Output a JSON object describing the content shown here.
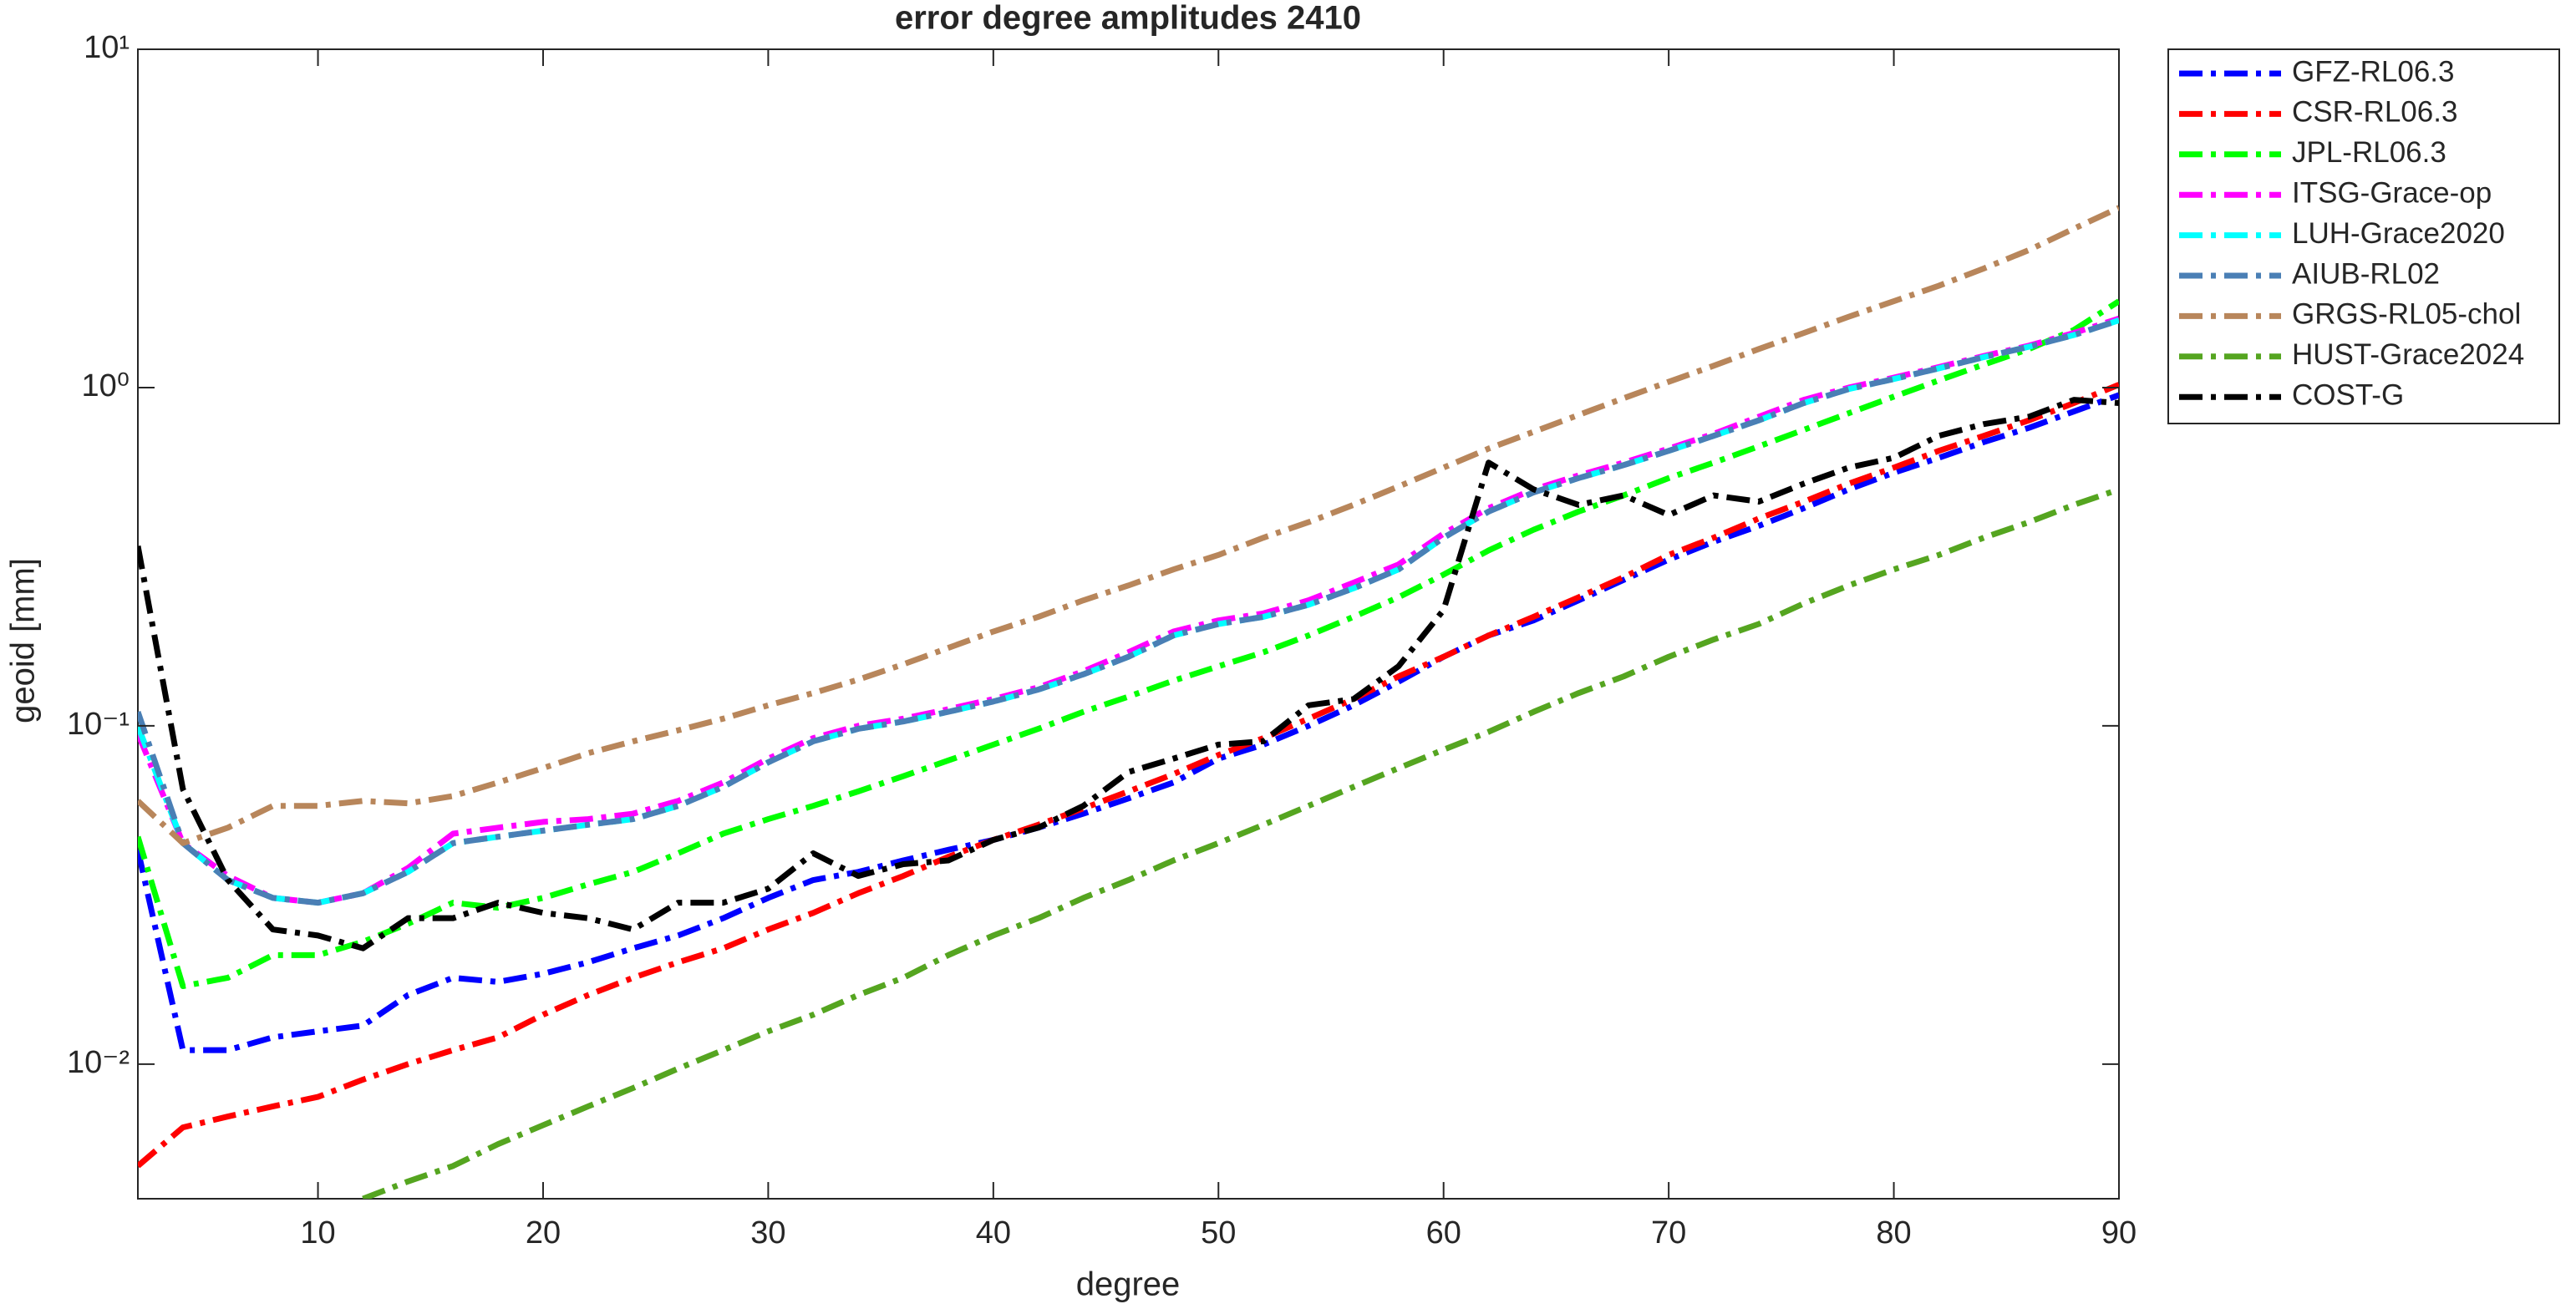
{
  "chart_data": {
    "type": "line",
    "title": "error degree amplitudes 2410",
    "x_label": "degree",
    "y_label": "geoid [mm]",
    "yscale": "log",
    "grid": false,
    "legend": "outside-right",
    "xlim": [
      2,
      90
    ],
    "xticks": [
      10,
      20,
      30,
      40,
      50,
      60,
      70,
      80,
      90
    ],
    "ylim": [
      0.004,
      10
    ],
    "yticks": [
      {
        "value": 0.01,
        "label": "10⁻²"
      },
      {
        "value": 0.1,
        "label": "10⁻¹"
      },
      {
        "value": 1,
        "label": "10⁰"
      },
      {
        "value": 10,
        "label": "10¹"
      }
    ],
    "x": [
      2,
      4,
      6,
      8,
      10,
      12,
      14,
      16,
      18,
      20,
      22,
      24,
      26,
      28,
      30,
      32,
      34,
      36,
      38,
      40,
      42,
      44,
      46,
      48,
      50,
      52,
      54,
      56,
      58,
      60,
      62,
      64,
      66,
      68,
      70,
      72,
      74,
      76,
      78,
      80,
      82,
      84,
      86,
      88,
      90
    ],
    "series": [
      {
        "name": "GFZ-RL06.3",
        "color": "#0000ff",
        "values": [
          0.043,
          0.011,
          0.011,
          0.012,
          0.0125,
          0.013,
          0.016,
          0.018,
          0.0175,
          0.0185,
          0.02,
          0.022,
          0.024,
          0.027,
          0.031,
          0.035,
          0.037,
          0.04,
          0.043,
          0.046,
          0.05,
          0.055,
          0.061,
          0.068,
          0.08,
          0.088,
          0.1,
          0.115,
          0.135,
          0.16,
          0.185,
          0.205,
          0.235,
          0.27,
          0.31,
          0.35,
          0.39,
          0.44,
          0.5,
          0.56,
          0.62,
          0.69,
          0.76,
          0.85,
          0.95
        ]
      },
      {
        "name": "CSR-RL06.3",
        "color": "#ff0000",
        "values": [
          0.005,
          0.0065,
          0.007,
          0.0075,
          0.008,
          0.009,
          0.01,
          0.011,
          0.012,
          0.014,
          0.016,
          0.018,
          0.02,
          0.022,
          0.025,
          0.028,
          0.032,
          0.036,
          0.041,
          0.046,
          0.051,
          0.057,
          0.064,
          0.072,
          0.082,
          0.092,
          0.105,
          0.12,
          0.14,
          0.16,
          0.185,
          0.21,
          0.24,
          0.275,
          0.32,
          0.36,
          0.41,
          0.46,
          0.52,
          0.58,
          0.65,
          0.72,
          0.8,
          0.9,
          1.02
        ]
      },
      {
        "name": "JPL-RL06.3",
        "color": "#00ff00",
        "values": [
          0.047,
          0.017,
          0.018,
          0.021,
          0.021,
          0.023,
          0.026,
          0.03,
          0.029,
          0.031,
          0.034,
          0.037,
          0.042,
          0.048,
          0.053,
          0.058,
          0.064,
          0.071,
          0.079,
          0.088,
          0.098,
          0.11,
          0.122,
          0.136,
          0.15,
          0.165,
          0.185,
          0.21,
          0.24,
          0.28,
          0.33,
          0.38,
          0.43,
          0.48,
          0.54,
          0.6,
          0.67,
          0.75,
          0.84,
          0.94,
          1.05,
          1.17,
          1.3,
          1.48,
          1.8
        ]
      },
      {
        "name": "ITSG-Grace-op",
        "color": "#ff00ff",
        "values": [
          0.095,
          0.045,
          0.036,
          0.031,
          0.03,
          0.032,
          0.038,
          0.048,
          0.05,
          0.052,
          0.053,
          0.055,
          0.06,
          0.068,
          0.08,
          0.092,
          0.1,
          0.105,
          0.112,
          0.12,
          0.13,
          0.145,
          0.165,
          0.19,
          0.205,
          0.215,
          0.235,
          0.265,
          0.3,
          0.37,
          0.44,
          0.5,
          0.55,
          0.6,
          0.66,
          0.73,
          0.82,
          0.92,
          1.0,
          1.07,
          1.15,
          1.24,
          1.33,
          1.45,
          1.6
        ]
      },
      {
        "name": "LUH-Grace2020",
        "color": "#00ffff",
        "values": [
          0.1,
          0.045,
          0.035,
          0.031,
          0.03,
          0.032,
          0.037,
          0.045,
          0.047,
          0.049,
          0.051,
          0.053,
          0.058,
          0.066,
          0.078,
          0.09,
          0.098,
          0.103,
          0.11,
          0.118,
          0.128,
          0.142,
          0.16,
          0.185,
          0.2,
          0.21,
          0.228,
          0.255,
          0.29,
          0.36,
          0.43,
          0.49,
          0.54,
          0.59,
          0.65,
          0.72,
          0.8,
          0.9,
          0.99,
          1.06,
          1.14,
          1.23,
          1.32,
          1.43,
          1.58
        ]
      },
      {
        "name": "AIUB-RL02",
        "color": "#4a7fb5",
        "values": [
          0.11,
          0.045,
          0.035,
          0.031,
          0.03,
          0.032,
          0.037,
          0.045,
          0.047,
          0.049,
          0.051,
          0.053,
          0.058,
          0.066,
          0.078,
          0.09,
          0.098,
          0.103,
          0.11,
          0.118,
          0.128,
          0.142,
          0.16,
          0.185,
          0.2,
          0.21,
          0.228,
          0.255,
          0.29,
          0.36,
          0.43,
          0.49,
          0.54,
          0.59,
          0.65,
          0.72,
          0.8,
          0.9,
          0.99,
          1.06,
          1.14,
          1.23,
          1.32,
          1.43,
          1.58
        ]
      },
      {
        "name": "GRGS-RL05-chol",
        "color": "#b8865b",
        "values": [
          0.06,
          0.045,
          0.05,
          0.058,
          0.058,
          0.06,
          0.059,
          0.062,
          0.068,
          0.075,
          0.083,
          0.09,
          0.097,
          0.105,
          0.115,
          0.125,
          0.137,
          0.152,
          0.17,
          0.19,
          0.21,
          0.235,
          0.26,
          0.29,
          0.32,
          0.36,
          0.4,
          0.45,
          0.51,
          0.58,
          0.66,
          0.74,
          0.83,
          0.93,
          1.04,
          1.16,
          1.3,
          1.45,
          1.62,
          1.8,
          2.0,
          2.25,
          2.55,
          2.95,
          3.4
        ]
      },
      {
        "name": "HUST-Grace2024",
        "color": "#55a520",
        "values": [
          null,
          null,
          null,
          null,
          null,
          0.004,
          0.0045,
          0.005,
          0.0058,
          0.0066,
          0.0075,
          0.0085,
          0.0097,
          0.011,
          0.0125,
          0.014,
          0.016,
          0.018,
          0.021,
          0.024,
          0.027,
          0.031,
          0.035,
          0.04,
          0.045,
          0.051,
          0.058,
          0.066,
          0.075,
          0.085,
          0.096,
          0.11,
          0.125,
          0.14,
          0.16,
          0.18,
          0.2,
          0.23,
          0.26,
          0.29,
          0.32,
          0.36,
          0.4,
          0.45,
          0.5
        ]
      },
      {
        "name": "COST-G",
        "color": "#000000",
        "values": [
          0.34,
          0.065,
          0.035,
          0.025,
          0.024,
          0.022,
          0.027,
          0.027,
          0.03,
          0.028,
          0.027,
          0.025,
          0.03,
          0.03,
          0.033,
          0.042,
          0.036,
          0.039,
          0.04,
          0.046,
          0.05,
          0.058,
          0.073,
          0.08,
          0.088,
          0.09,
          0.115,
          0.12,
          0.15,
          0.22,
          0.6,
          0.5,
          0.45,
          0.48,
          0.42,
          0.48,
          0.46,
          0.52,
          0.58,
          0.62,
          0.72,
          0.78,
          0.82,
          0.92,
          0.9
        ]
      }
    ]
  }
}
